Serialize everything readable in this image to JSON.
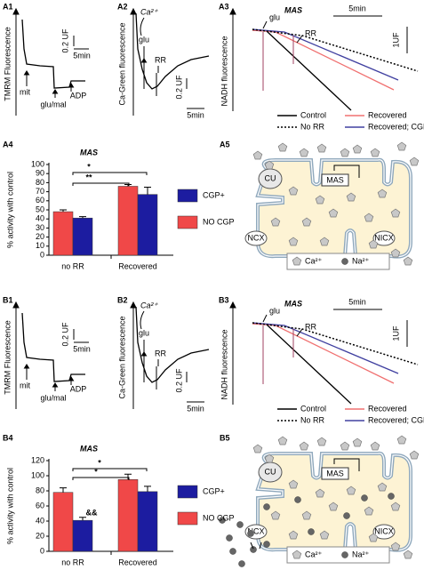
{
  "rows": [
    {
      "trace1": {
        "label": "A1",
        "ylabel": "TMRM Fluorescence",
        "scale_y": "0.2 UF",
        "scale_x": "5min",
        "marks": [
          "mit",
          "glu/mal",
          "ADP"
        ]
      },
      "trace2": {
        "label": "A2",
        "ylabel": "Ca-Green fluorescence",
        "ion": "Ca²⁺",
        "glu": "glu",
        "rr": "RR",
        "scale_y": "0.2 UF",
        "scale_x": "5min"
      },
      "trace3": {
        "label": "A3",
        "title": "MAS",
        "ylabel": "NADH fluorescence",
        "glu": "glu",
        "rr": "RR",
        "scale_x": "5min",
        "scale_y": "1UF",
        "legend": [
          "Control",
          "No RR",
          "Recovered",
          "Recovered; CGP+"
        ]
      },
      "bar_label": "A4",
      "diagram": {
        "label": "A5",
        "cu": "CU",
        "mas": "MAS",
        "ncx": "NCX",
        "nicx": "NICX",
        "legend": [
          "Ca²⁺",
          "Na²⁺"
        ]
      }
    },
    {
      "trace1": {
        "label": "B1",
        "ylabel": "TMRM Fluorescence",
        "scale_y": "0.2 UF",
        "scale_x": "5min",
        "marks": [
          "mit",
          "glu/mal",
          "ADP"
        ]
      },
      "trace2": {
        "label": "B2",
        "ylabel": "Ca-Green fluorescence",
        "ion": "Ca²⁺",
        "glu": "glu",
        "rr": "RR",
        "scale_y": "0.2 UF",
        "scale_x": "5min"
      },
      "trace3": {
        "label": "B3",
        "title": "MAS",
        "ylabel": "NADH fluorescence",
        "glu": "glu",
        "rr": "RR",
        "scale_x": "5min",
        "scale_y": "1UF",
        "legend": [
          "Control",
          "Recovered",
          "No RR",
          "Recovered; CGP+"
        ]
      },
      "bar_label": "B4",
      "diagram": {
        "label": "B5",
        "cu": "CU",
        "mas": "MAS",
        "ncx": "NCX",
        "nicx": "NICX",
        "legend": [
          "Ca²⁺",
          "Na²⁺"
        ]
      }
    }
  ],
  "chart_data": [
    {
      "type": "bar",
      "title": "MAS",
      "ylabel": "% activity with control",
      "categories": [
        "no RR",
        "Recovered"
      ],
      "series": [
        {
          "name": "NO CGP",
          "color": "#f04848",
          "values": [
            48,
            76
          ],
          "errors": [
            2,
            2
          ]
        },
        {
          "name": "CGP+",
          "color": "#1c1ca0",
          "values": [
            41,
            67
          ],
          "errors": [
            1.5,
            8
          ]
        }
      ],
      "ylim": [
        0,
        100
      ],
      "yticks": [
        0,
        10,
        20,
        30,
        40,
        50,
        60,
        70,
        80,
        90,
        100
      ],
      "annotations": [
        "*",
        "**"
      ]
    },
    {
      "type": "bar",
      "title": "MAS",
      "ylabel": "% activity with control",
      "categories": [
        "no RR",
        "Recovered"
      ],
      "series": [
        {
          "name": "NO CGP",
          "color": "#f04848",
          "values": [
            78,
            95
          ],
          "errors": [
            6,
            7
          ]
        },
        {
          "name": "CGP+",
          "color": "#1c1ca0",
          "values": [
            41,
            79
          ],
          "errors": [
            4,
            7
          ]
        }
      ],
      "ylim": [
        0,
        120
      ],
      "yticks": [
        0,
        20,
        40,
        60,
        80,
        100,
        120
      ],
      "annotations": [
        "*",
        "*",
        "&&"
      ]
    }
  ]
}
